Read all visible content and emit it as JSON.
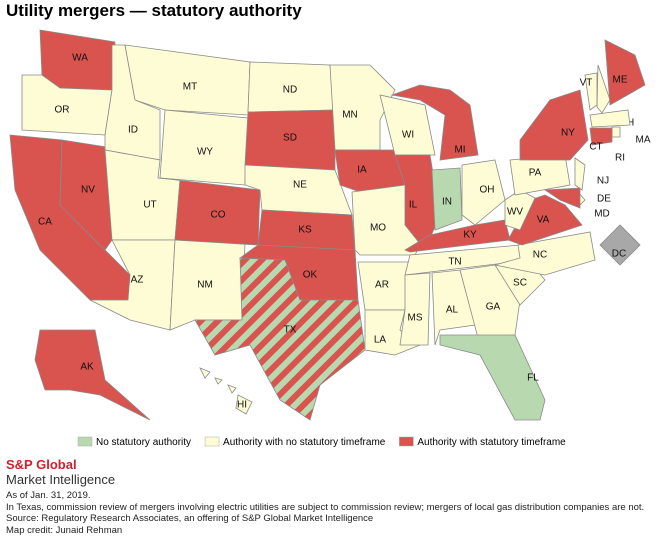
{
  "title": "Utility mergers — statutory authority",
  "legend": [
    {
      "label": "No statutory authority",
      "color": "#b8d9b0"
    },
    {
      "label": "Authority with no statutory timeframe",
      "color": "#fdfcd4"
    },
    {
      "label": "Authority with statutory timeframe",
      "color": "#d9534f"
    }
  ],
  "states": [
    {
      "label": "WA",
      "status": [
        2
      ]
    },
    {
      "label": "OR",
      "status": [
        1
      ]
    },
    {
      "label": "CA",
      "status": [
        2
      ]
    },
    {
      "label": "NV",
      "status": [
        2
      ]
    },
    {
      "label": "ID",
      "status": [
        1
      ]
    },
    {
      "label": "MT",
      "status": [
        1
      ]
    },
    {
      "label": "WY",
      "status": [
        1
      ]
    },
    {
      "label": "UT",
      "status": [
        1
      ]
    },
    {
      "label": "AZ",
      "status": [
        1
      ]
    },
    {
      "label": "NM",
      "status": [
        1
      ]
    },
    {
      "label": "CO",
      "status": [
        2
      ]
    },
    {
      "label": "ND",
      "status": [
        1
      ]
    },
    {
      "label": "SD",
      "status": [
        2
      ]
    },
    {
      "label": "NE",
      "status": [
        1
      ]
    },
    {
      "label": "KS",
      "status": [
        2
      ]
    },
    {
      "label": "OK",
      "status": [
        2
      ]
    },
    {
      "label": "TX",
      "status": [
        0,
        2
      ]
    },
    {
      "label": "MN",
      "status": [
        1
      ]
    },
    {
      "label": "IA",
      "status": [
        2
      ]
    },
    {
      "label": "MO",
      "status": [
        1
      ]
    },
    {
      "label": "AR",
      "status": [
        1
      ]
    },
    {
      "label": "LA",
      "status": [
        1
      ]
    },
    {
      "label": "WI",
      "status": [
        1
      ]
    },
    {
      "label": "IL",
      "status": [
        2
      ]
    },
    {
      "label": "MI",
      "status": [
        2
      ]
    },
    {
      "label": "IN",
      "status": [
        0
      ]
    },
    {
      "label": "OH",
      "status": [
        1
      ]
    },
    {
      "label": "KY",
      "status": [
        2
      ]
    },
    {
      "label": "TN",
      "status": [
        1
      ]
    },
    {
      "label": "MS",
      "status": [
        1
      ]
    },
    {
      "label": "AL",
      "status": [
        1
      ]
    },
    {
      "label": "GA",
      "status": [
        1
      ]
    },
    {
      "label": "FL",
      "status": [
        0
      ]
    },
    {
      "label": "SC",
      "status": [
        1
      ]
    },
    {
      "label": "NC",
      "status": [
        1
      ]
    },
    {
      "label": "VA",
      "status": [
        2
      ]
    },
    {
      "label": "WV",
      "status": [
        1
      ]
    },
    {
      "label": "PA",
      "status": [
        1
      ]
    },
    {
      "label": "NY",
      "status": [
        2
      ]
    },
    {
      "label": "VT",
      "status": [
        1
      ]
    },
    {
      "label": "NH",
      "status": [
        1
      ]
    },
    {
      "label": "ME",
      "status": [
        2
      ]
    },
    {
      "label": "MA",
      "status": [
        1
      ]
    },
    {
      "label": "RI",
      "status": [
        1
      ]
    },
    {
      "label": "CT",
      "status": [
        2
      ]
    },
    {
      "label": "NJ",
      "status": [
        1
      ]
    },
    {
      "label": "DE",
      "status": [
        1
      ]
    },
    {
      "label": "MD",
      "status": [
        2
      ]
    },
    {
      "label": "DC",
      "status": []
    },
    {
      "label": "AK",
      "status": [
        2
      ]
    },
    {
      "label": "HI",
      "status": [
        1
      ]
    }
  ],
  "brand": {
    "name": "S&P Global",
    "sub": "Market Intelligence"
  },
  "notes": [
    "As of Jan. 31, 2019.",
    "In Texas, commission review of mergers involving electric utilities are subject to commission review; mergers of local gas distribution companies are not.",
    "Source: Regulatory Research Associates, an offering of S&P Global Market Intelligence",
    "Map credit: Junaid Rehman"
  ]
}
